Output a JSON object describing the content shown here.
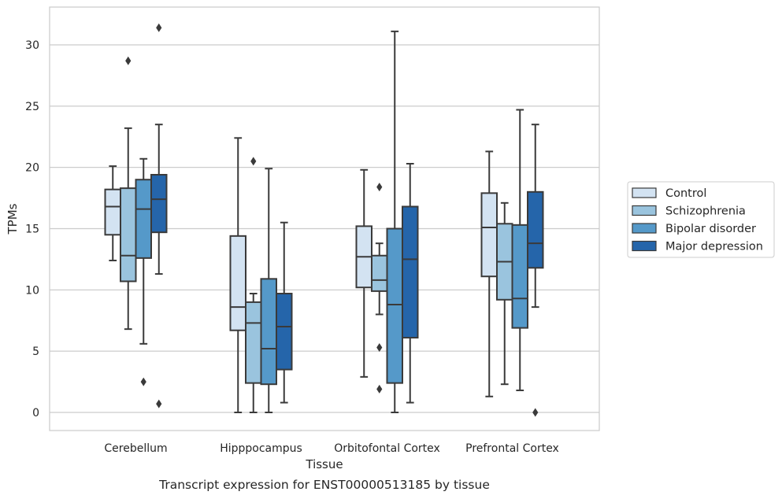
{
  "chart_data": {
    "type": "box",
    "title": "",
    "caption": "Transcript expression for ENST00000513185 by tissue",
    "xlabel": "Tissue",
    "ylabel": "TPMs",
    "ylim": [
      -1.5,
      33.5
    ],
    "yticks": [
      0,
      5,
      10,
      15,
      20,
      25,
      30
    ],
    "categories": [
      "Cerebellum",
      "Hipppocampus",
      "Orbitofontal Cortex",
      "Prefrontal Cortex"
    ],
    "grid": "horizontal",
    "legend_position": "right",
    "series": [
      {
        "name": "Control",
        "color": "#d3e3f2",
        "boxes": [
          {
            "whislo": 12.4,
            "q1": 14.5,
            "med": 16.8,
            "q3": 18.2,
            "whishi": 20.1,
            "fliers": []
          },
          {
            "whislo": 0.0,
            "q1": 6.7,
            "med": 8.6,
            "q3": 14.4,
            "whishi": 22.4,
            "fliers": []
          },
          {
            "whislo": 2.9,
            "q1": 10.2,
            "med": 12.7,
            "q3": 15.2,
            "whishi": 19.8,
            "fliers": []
          },
          {
            "whislo": 1.3,
            "q1": 11.1,
            "med": 15.1,
            "q3": 17.9,
            "whishi": 21.3,
            "fliers": []
          }
        ]
      },
      {
        "name": "Schizophrenia",
        "color": "#9ac4de",
        "boxes": [
          {
            "whislo": 6.8,
            "q1": 10.7,
            "med": 12.8,
            "q3": 18.3,
            "whishi": 23.2,
            "fliers": [
              28.7
            ]
          },
          {
            "whislo": 0.0,
            "q1": 2.4,
            "med": 7.3,
            "q3": 9.0,
            "whishi": 9.7,
            "fliers": [
              20.5
            ]
          },
          {
            "whislo": 8.0,
            "q1": 9.9,
            "med": 10.8,
            "q3": 12.8,
            "whishi": 13.8,
            "fliers": [
              18.4,
              5.3,
              1.9
            ]
          },
          {
            "whislo": 2.3,
            "q1": 9.2,
            "med": 12.3,
            "q3": 15.4,
            "whishi": 17.1,
            "fliers": []
          }
        ]
      },
      {
        "name": "Bipolar disorder",
        "color": "#5599c9",
        "boxes": [
          {
            "whislo": 5.6,
            "q1": 12.6,
            "med": 16.6,
            "q3": 19.0,
            "whishi": 20.7,
            "fliers": [
              2.5
            ]
          },
          {
            "whislo": 0.0,
            "q1": 2.3,
            "med": 5.2,
            "q3": 10.9,
            "whishi": 19.9,
            "fliers": []
          },
          {
            "whislo": 0.0,
            "q1": 2.4,
            "med": 8.8,
            "q3": 15.0,
            "whishi": 31.1,
            "fliers": []
          },
          {
            "whislo": 1.8,
            "q1": 6.9,
            "med": 9.3,
            "q3": 15.3,
            "whishi": 24.7,
            "fliers": []
          }
        ]
      },
      {
        "name": "Major depression",
        "color": "#2565aa",
        "boxes": [
          {
            "whislo": 11.3,
            "q1": 14.7,
            "med": 17.4,
            "q3": 19.4,
            "whishi": 23.5,
            "fliers": [
              31.4,
              0.7
            ]
          },
          {
            "whislo": 0.8,
            "q1": 3.5,
            "med": 7.0,
            "q3": 9.7,
            "whishi": 15.5,
            "fliers": []
          },
          {
            "whislo": 0.8,
            "q1": 6.1,
            "med": 12.5,
            "q3": 16.8,
            "whishi": 20.3,
            "fliers": []
          },
          {
            "whislo": 8.6,
            "q1": 11.8,
            "med": 13.8,
            "q3": 18.0,
            "whishi": 23.5,
            "fliers": [
              0.0
            ]
          }
        ]
      }
    ]
  }
}
